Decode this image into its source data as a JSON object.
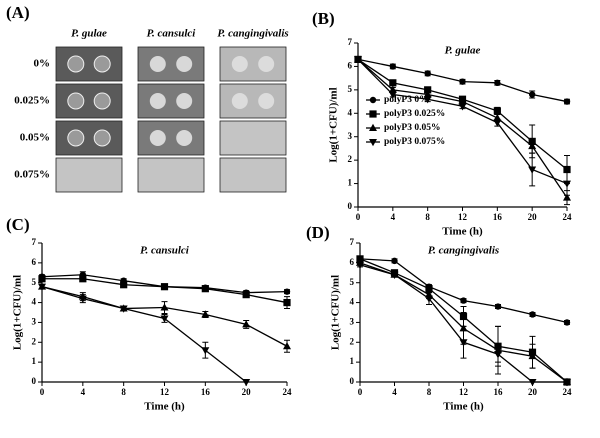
{
  "panel_a": {
    "label": "(A)",
    "columns": [
      "P. gulae",
      "P. cansulci",
      "P. cangingivalis"
    ],
    "rows": [
      "0%",
      "0.025%",
      "0.05%",
      "0.075%"
    ]
  },
  "chart_data": [
    {
      "type": "line",
      "panel_label": "(B)",
      "title": "P. gulae",
      "xlabel": "Time (h)",
      "ylabel": "Log(1+CFU)/ml",
      "x": [
        0,
        4,
        8,
        12,
        16,
        20,
        24
      ],
      "xlim": [
        0,
        24
      ],
      "xticks": [
        0,
        4,
        8,
        12,
        16,
        20,
        24
      ],
      "ylim": [
        0,
        7
      ],
      "yticks": [
        0,
        1,
        2,
        3,
        4,
        5,
        6,
        7
      ],
      "legend": "center-left",
      "series": [
        {
          "name": "polyP3 0%",
          "color": "#000000",
          "marker": "circle",
          "values": [
            6.3,
            6.0,
            5.7,
            5.35,
            5.3,
            4.8,
            4.5
          ],
          "errors": [
            0.1,
            0.1,
            0.1,
            0.1,
            0.1,
            0.15,
            0.1
          ]
        },
        {
          "name": "polyP3 0.025%",
          "color": "#000000",
          "marker": "square",
          "values": [
            6.3,
            5.3,
            5.0,
            4.6,
            4.1,
            2.8,
            1.6
          ],
          "errors": [
            0.1,
            0.1,
            0.1,
            0.1,
            0.15,
            0.7,
            0.6
          ]
        },
        {
          "name": "polyP3 0.05%",
          "color": "#000000",
          "marker": "triangle-up",
          "values": [
            6.3,
            5.0,
            4.8,
            4.5,
            3.8,
            2.6,
            0.4
          ],
          "errors": [
            0.1,
            0.1,
            0.1,
            0.1,
            0.15,
            0.3,
            0.3
          ]
        },
        {
          "name": "polyP3 0.075%",
          "color": "#000000",
          "marker": "triangle-down",
          "values": [
            6.3,
            4.8,
            4.6,
            4.3,
            3.6,
            1.6,
            1.0
          ],
          "errors": [
            0.1,
            0.1,
            0.1,
            0.1,
            0.15,
            0.7,
            0.5
          ]
        }
      ]
    },
    {
      "type": "line",
      "panel_label": "(C)",
      "title": "P. cansulci",
      "xlabel": "Time (h)",
      "ylabel": "Log(1+CFU)/ml",
      "x": [
        0,
        4,
        8,
        12,
        16,
        20,
        24
      ],
      "xlim": [
        0,
        24
      ],
      "xticks": [
        0,
        4,
        8,
        12,
        16,
        20,
        24
      ],
      "ylim": [
        0,
        7
      ],
      "yticks": [
        0,
        1,
        2,
        3,
        4,
        5,
        6,
        7
      ],
      "series": [
        {
          "color": "#000000",
          "marker": "circle",
          "values": [
            5.3,
            5.4,
            5.1,
            4.8,
            4.75,
            4.5,
            4.55
          ],
          "errors": [
            0.1,
            0.15,
            0.1,
            0.1,
            0.1,
            0.1,
            0.1
          ]
        },
        {
          "color": "#000000",
          "marker": "square",
          "values": [
            5.2,
            5.2,
            4.9,
            4.8,
            4.7,
            4.4,
            4.0
          ],
          "errors": [
            0.1,
            0.1,
            0.1,
            0.1,
            0.1,
            0.1,
            0.3
          ]
        },
        {
          "color": "#000000",
          "marker": "triangle-up",
          "values": [
            4.8,
            4.3,
            3.7,
            3.75,
            3.4,
            2.9,
            1.8
          ],
          "errors": [
            0.1,
            0.2,
            0.1,
            0.3,
            0.15,
            0.2,
            0.3
          ]
        },
        {
          "color": "#000000",
          "marker": "triangle-down",
          "values": [
            4.8,
            4.2,
            3.7,
            3.2,
            1.6,
            0,
            null
          ],
          "errors": [
            0.1,
            0.2,
            0.1,
            0.2,
            0.4,
            0,
            null
          ]
        }
      ]
    },
    {
      "type": "line",
      "panel_label": "(D)",
      "title": "P. cangingivalis",
      "xlabel": "Time (h)",
      "ylabel": "Log(1+CFU)/ml",
      "x": [
        0,
        4,
        8,
        12,
        16,
        20,
        24
      ],
      "xlim": [
        0,
        24
      ],
      "xticks": [
        0,
        4,
        8,
        12,
        16,
        20,
        24
      ],
      "ylim": [
        0,
        7
      ],
      "yticks": [
        0,
        1,
        2,
        3,
        4,
        5,
        6,
        7
      ],
      "series": [
        {
          "color": "#000000",
          "marker": "circle",
          "values": [
            6.2,
            6.1,
            4.8,
            4.1,
            3.8,
            3.4,
            3.0
          ],
          "errors": [
            0.1,
            0.1,
            0.1,
            0.1,
            0.1,
            0.1,
            0.1
          ]
        },
        {
          "color": "#000000",
          "marker": "square",
          "values": [
            6.2,
            5.5,
            4.7,
            3.3,
            1.8,
            1.5,
            0
          ],
          "errors": [
            0.1,
            0.1,
            0.2,
            0.5,
            1.0,
            0.8,
            0
          ]
        },
        {
          "color": "#000000",
          "marker": "triangle-up",
          "values": [
            6.0,
            5.4,
            4.4,
            2.7,
            1.6,
            1.3,
            0
          ],
          "errors": [
            0.1,
            0.1,
            0.2,
            0.8,
            1.2,
            0.6,
            0
          ]
        },
        {
          "color": "#000000",
          "marker": "triangle-down",
          "values": [
            5.9,
            5.4,
            4.2,
            2.0,
            1.4,
            0,
            0
          ],
          "errors": [
            0.1,
            0.1,
            0.3,
            0.8,
            0.4,
            0,
            0
          ]
        }
      ]
    }
  ]
}
